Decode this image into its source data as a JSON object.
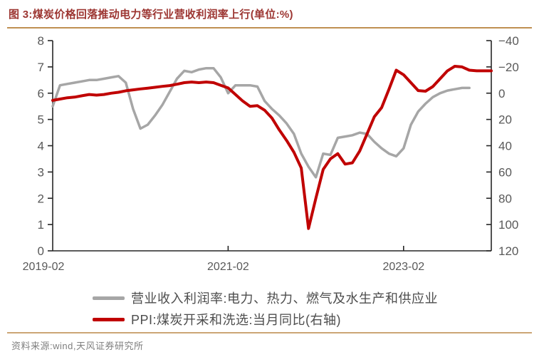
{
  "header": {
    "title": "图 3:煤炭价格回落推动电力等行业营收利润率上行(单位:%)"
  },
  "footer": {
    "source": "资料来源:wind,天风证券研究所"
  },
  "theme": {
    "title_color": "#9c3531",
    "rule_color": "#bf9052",
    "axis_label_color": "#595959",
    "axis_line_color": "#262626",
    "series_gray": "#a6a6a6",
    "series_red": "#c00000",
    "background": "#ffffff"
  },
  "chart_data": {
    "type": "line",
    "title": "煤炭价格回落推动电力等行业营收利润率上行",
    "unit": "%",
    "x": [
      "2019-02",
      "2019-03",
      "2019-04",
      "2019-05",
      "2019-06",
      "2019-07",
      "2019-08",
      "2019-09",
      "2019-10",
      "2019-11",
      "2019-12",
      "2020-01",
      "2020-02",
      "2020-03",
      "2020-04",
      "2020-05",
      "2020-06",
      "2020-07",
      "2020-08",
      "2020-09",
      "2020-10",
      "2020-11",
      "2020-12",
      "2021-01",
      "2021-02",
      "2021-03",
      "2021-04",
      "2021-05",
      "2021-06",
      "2021-07",
      "2021-08",
      "2021-09",
      "2021-10",
      "2021-11",
      "2021-12",
      "2022-01",
      "2022-02",
      "2022-03",
      "2022-04",
      "2022-05",
      "2022-06",
      "2022-07",
      "2022-08",
      "2022-09",
      "2022-10",
      "2022-11",
      "2022-12",
      "2023-01",
      "2023-02",
      "2023-03",
      "2023-04",
      "2023-05",
      "2023-06",
      "2023-07",
      "2023-08",
      "2023-09",
      "2023-10",
      "2023-11",
      "2023-12",
      "2024-01",
      "2024-02"
    ],
    "x_ticks": [
      {
        "label": "2019-02",
        "index": 0
      },
      {
        "label": "2021-02",
        "index": 24
      },
      {
        "label": "2023-02",
        "index": 48
      }
    ],
    "axes": {
      "left": {
        "min": 0,
        "max": 8,
        "inverted": false,
        "ticks": [
          0,
          1,
          2,
          3,
          4,
          5,
          6,
          7,
          8
        ]
      },
      "right": {
        "min": -40,
        "max": 120,
        "inverted": true,
        "ticks": [
          -40,
          -20,
          0,
          20,
          40,
          60,
          80,
          100,
          120
        ]
      }
    },
    "grid": false,
    "legend_position": "bottom",
    "series": [
      {
        "name": "营业收入利润率:电力、热力、燃气及水生产和供应业",
        "axis": "left",
        "color": "#a6a6a6",
        "width": 3.5,
        "values": [
          5.5,
          6.3,
          6.35,
          6.4,
          6.45,
          6.5,
          6.5,
          6.55,
          6.6,
          6.65,
          6.4,
          5.4,
          4.65,
          4.8,
          5.15,
          5.55,
          6.05,
          6.55,
          6.85,
          6.8,
          6.9,
          6.95,
          6.95,
          6.6,
          6.0,
          6.3,
          6.3,
          6.3,
          6.25,
          5.7,
          5.4,
          5.15,
          4.85,
          4.45,
          3.7,
          3.2,
          2.8,
          3.7,
          3.65,
          4.3,
          4.35,
          4.4,
          4.5,
          4.45,
          4.15,
          3.9,
          3.7,
          3.6,
          3.9,
          4.8,
          5.3,
          5.6,
          5.85,
          6.0,
          6.1,
          6.15,
          6.2,
          6.2,
          null,
          null,
          null
        ]
      },
      {
        "name": "PPI:煤炭开采和洗选:当月同比(右轴)",
        "axis": "right",
        "color": "#c00000",
        "width": 4,
        "values": [
          5.5,
          4.5,
          3.5,
          3.0,
          2.0,
          1.0,
          1.5,
          1.0,
          0.0,
          -0.7,
          -1.8,
          -2.5,
          -3.2,
          -3.8,
          -4.5,
          -5.2,
          -5.8,
          -6.8,
          -8.0,
          -8.5,
          -8.0,
          -8.5,
          -8.0,
          -6.0,
          -4.0,
          1.0,
          6.0,
          10.0,
          9.5,
          13.0,
          19.0,
          28.0,
          36.0,
          45.0,
          57.0,
          103.0,
          80.0,
          58.0,
          50.0,
          46.0,
          54.0,
          53.0,
          44.0,
          31.0,
          18.0,
          11.0,
          -3.0,
          -17.5,
          -14.0,
          -8.0,
          -2.0,
          -1.5,
          -5.0,
          -11.0,
          -17.0,
          -20.5,
          -20.0,
          -17.5,
          -17.0,
          -17.0,
          -17.0
        ]
      }
    ]
  }
}
